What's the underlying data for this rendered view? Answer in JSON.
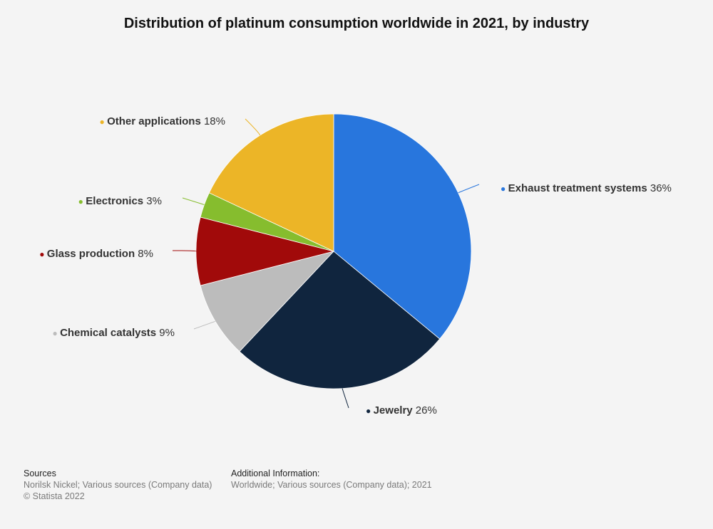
{
  "title": "Distribution of platinum consumption worldwide in 2021, by industry",
  "chart_data": {
    "type": "pie",
    "start_angle_deg": 0,
    "direction": "clockwise",
    "slices": [
      {
        "label": "Exhaust treatment systems",
        "value": 36,
        "value_label": "36%",
        "color": "#2876dd"
      },
      {
        "label": "Jewelry",
        "value": 26,
        "value_label": "26%",
        "color": "#10253e"
      },
      {
        "label": "Chemical catalysts",
        "value": 9,
        "value_label": "9%",
        "color": "#bcbcbc"
      },
      {
        "label": "Glass production",
        "value": 8,
        "value_label": "8%",
        "color": "#a10a0a"
      },
      {
        "label": "Electronics",
        "value": 3,
        "value_label": "3%",
        "color": "#86bd2e"
      },
      {
        "label": "Other applications",
        "value": 18,
        "value_label": "18%",
        "color": "#ecb527"
      }
    ]
  },
  "footer": {
    "sources_heading": "Sources",
    "sources_text": "Norilsk Nickel; Various sources (Company data)",
    "copyright": "© Statista 2022",
    "additional_heading": "Additional Information:",
    "additional_text": "Worldwide; Various sources (Company data); 2021"
  }
}
